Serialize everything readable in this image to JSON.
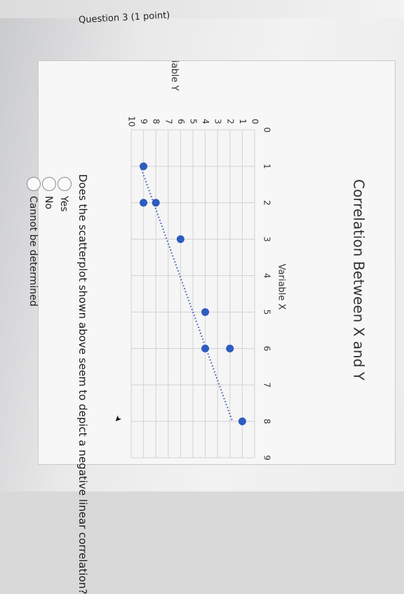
{
  "header": {
    "partial_label": "Question 3 (1 point)"
  },
  "question": {
    "text": "Does the scatterplot shown above seem to depict a negative linear correlation?",
    "options": [
      {
        "label": "Yes",
        "selected": false
      },
      {
        "label": "No",
        "selected": false
      },
      {
        "label": "Cannot be determined",
        "selected": false
      }
    ]
  },
  "chart_data": {
    "type": "scatter",
    "title": "Correlation Between X and Y",
    "xlabel": "Variable X",
    "ylabel": "Variable Y",
    "xlim": [
      0,
      9
    ],
    "ylim": [
      0,
      10
    ],
    "x_ticks": [
      "0",
      "1",
      "2",
      "3",
      "4",
      "5",
      "6",
      "7",
      "8",
      "9"
    ],
    "y_ticks": [
      "0",
      "1",
      "2",
      "3",
      "4",
      "5",
      "6",
      "7",
      "8",
      "9",
      "10"
    ],
    "grid": true,
    "points": [
      {
        "x": 1,
        "y": 9
      },
      {
        "x": 2,
        "y": 8
      },
      {
        "x": 2,
        "y": 9
      },
      {
        "x": 3,
        "y": 6
      },
      {
        "x": 5,
        "y": 4
      },
      {
        "x": 6,
        "y": 4
      },
      {
        "x": 6,
        "y": 2
      },
      {
        "x": 8,
        "y": 1
      }
    ],
    "trendline": {
      "style": "dotted",
      "x": [
        1,
        8
      ],
      "y": [
        9.25,
        1.8
      ]
    },
    "point_color": "#2e5bbf",
    "trendline_color": "#3f5fb8"
  }
}
